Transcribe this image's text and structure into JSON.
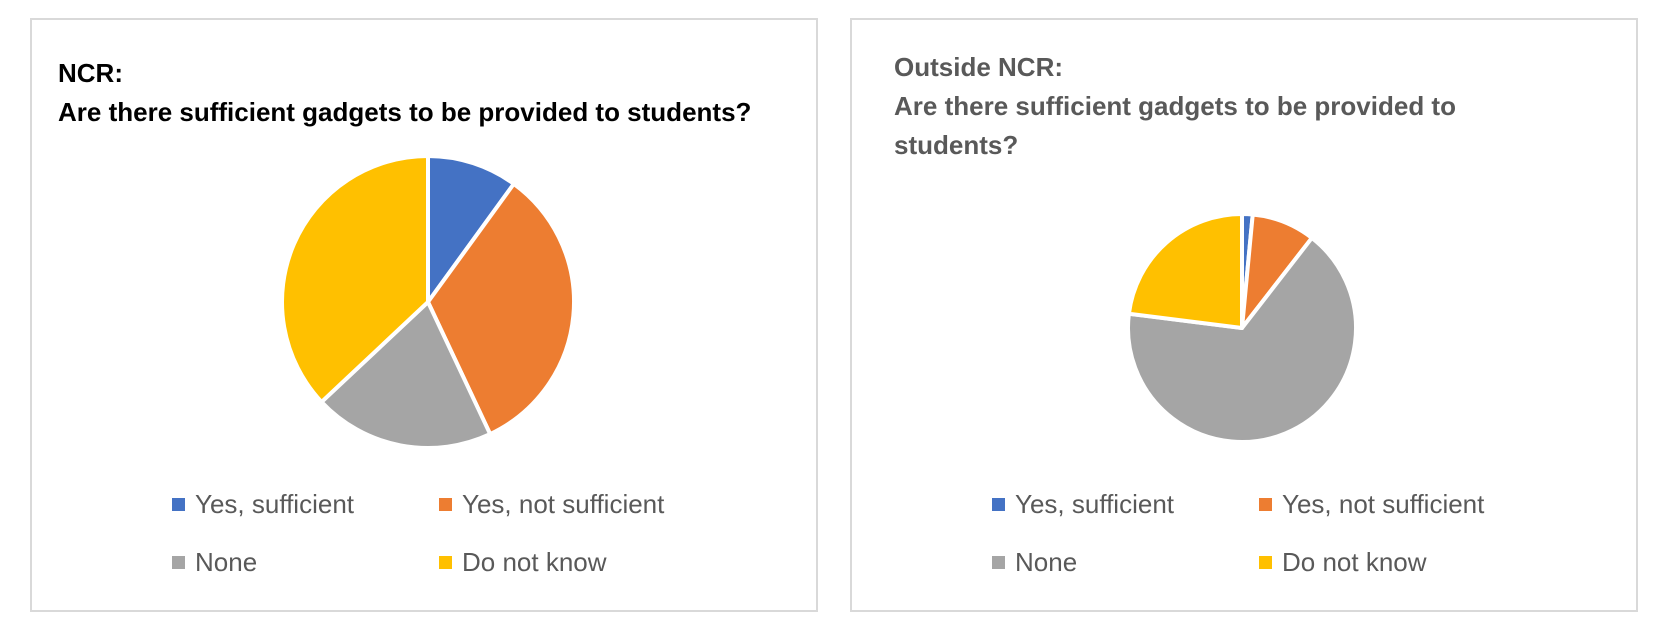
{
  "chart_data": [
    {
      "type": "pie",
      "title_lines": [
        "NCR:",
        "Are there sufficient gadgets to be provided to students?"
      ],
      "categories": [
        "Yes, sufficient",
        "Yes, not sufficient",
        "None",
        "Do not know"
      ],
      "values": [
        10,
        33,
        20,
        37
      ],
      "colors": [
        "#4472C4",
        "#ED7D31",
        "#A5A5A5",
        "#FFC000"
      ],
      "legend_position": "bottom"
    },
    {
      "type": "pie",
      "title_lines": [
        "Outside NCR:",
        "Are there sufficient gadgets to be provided to",
        "students?"
      ],
      "categories": [
        "Yes, sufficient",
        "Yes, not sufficient",
        "None",
        "Do not know"
      ],
      "values": [
        1.5,
        9,
        66.5,
        23
      ],
      "colors": [
        "#4472C4",
        "#ED7D31",
        "#A5A5A5",
        "#FFC000"
      ],
      "legend_position": "bottom"
    }
  ]
}
